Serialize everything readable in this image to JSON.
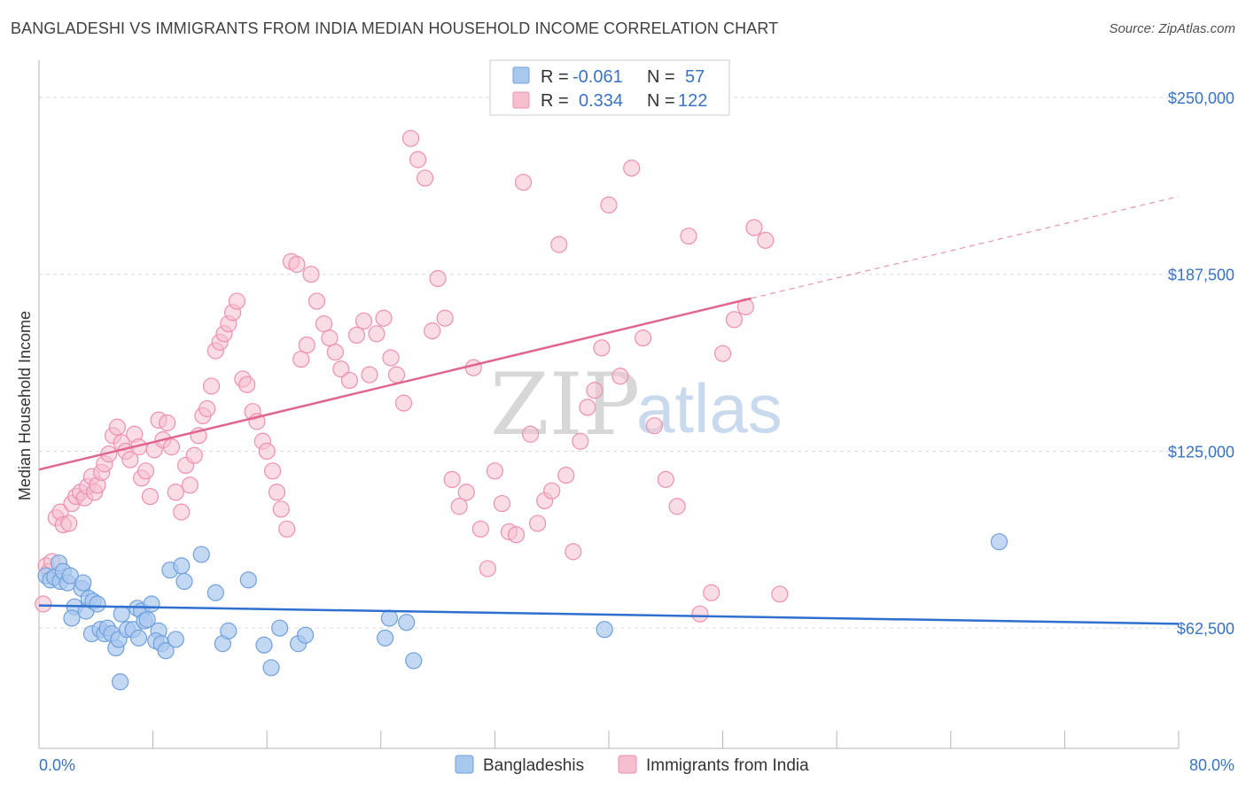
{
  "header": {
    "title": "BANGLADESHI VS IMMIGRANTS FROM INDIA MEDIAN HOUSEHOLD INCOME CORRELATION CHART",
    "source": "Source: ZipAtlas.com"
  },
  "watermark": {
    "zip": "ZIP",
    "atlas": "atlas"
  },
  "legend": {
    "r_label": "R =",
    "n_label": "N =",
    "rows": [
      {
        "r": "-0.061",
        "n": "57",
        "color": "#6fa0dd"
      },
      {
        "r": "0.334",
        "n": "122",
        "color": "#ef8fb0"
      }
    ]
  },
  "colors": {
    "blue_fill": "#a9c8ee",
    "blue_stroke": "#6fa0dd",
    "blue_line": "#2f6fd0",
    "pink_fill": "#f6bfd0",
    "pink_stroke": "#ee8fb0",
    "pink_line": "#e0668f",
    "tick_label": "#3a72c4",
    "grid": "#d9d9d9"
  },
  "chart_data": {
    "type": "scatter",
    "title": "BANGLADESHI VS IMMIGRANTS FROM INDIA MEDIAN HOUSEHOLD INCOME CORRELATION CHART",
    "xlabel": "",
    "ylabel": "Median Household Income",
    "xlim": [
      0,
      80
    ],
    "ylim": [
      20000,
      260000
    ],
    "x_tick_labels": [
      "0.0%",
      "80.0%"
    ],
    "y_ticks": [
      62500,
      125000,
      187500,
      250000
    ],
    "y_tick_labels": [
      "$62,500",
      "$125,000",
      "$187,500",
      "$250,000"
    ],
    "grid": true,
    "legend_position": "top-center",
    "series": [
      {
        "name": "Bangladeshis",
        "trend": {
          "x": [
            0,
            80
          ],
          "y": [
            70500,
            64000
          ],
          "solid_until_x": 80
        },
        "points": [
          [
            0.5,
            81000
          ],
          [
            0.8,
            79500
          ],
          [
            1.1,
            80500
          ],
          [
            1.4,
            85500
          ],
          [
            1.5,
            79000
          ],
          [
            1.7,
            82500
          ],
          [
            2.0,
            78500
          ],
          [
            2.2,
            81000
          ],
          [
            2.5,
            70000
          ],
          [
            2.3,
            66000
          ],
          [
            3.0,
            76500
          ],
          [
            3.1,
            78500
          ],
          [
            3.3,
            68500
          ],
          [
            3.5,
            73000
          ],
          [
            3.8,
            72000
          ],
          [
            3.7,
            60500
          ],
          [
            4.1,
            71000
          ],
          [
            4.3,
            62000
          ],
          [
            4.6,
            60500
          ],
          [
            4.8,
            62500
          ],
          [
            5.1,
            60500
          ],
          [
            5.4,
            55500
          ],
          [
            5.6,
            58500
          ],
          [
            5.7,
            43500
          ],
          [
            5.8,
            67500
          ],
          [
            6.2,
            62000
          ],
          [
            6.6,
            62000
          ],
          [
            6.9,
            69500
          ],
          [
            7.2,
            68500
          ],
          [
            7.4,
            65000
          ],
          [
            7.6,
            65500
          ],
          [
            7.0,
            59000
          ],
          [
            7.9,
            71000
          ],
          [
            8.4,
            61500
          ],
          [
            8.2,
            58000
          ],
          [
            8.6,
            57000
          ],
          [
            8.9,
            54500
          ],
          [
            9.2,
            83000
          ],
          [
            9.6,
            58500
          ],
          [
            10.2,
            79000
          ],
          [
            10.0,
            84500
          ],
          [
            11.4,
            88500
          ],
          [
            12.4,
            75000
          ],
          [
            12.9,
            57000
          ],
          [
            13.3,
            61500
          ],
          [
            14.7,
            79500
          ],
          [
            15.8,
            56500
          ],
          [
            16.9,
            62500
          ],
          [
            16.3,
            48500
          ],
          [
            18.2,
            57000
          ],
          [
            18.7,
            60000
          ],
          [
            24.3,
            59000
          ],
          [
            24.6,
            66000
          ],
          [
            25.8,
            64500
          ],
          [
            26.3,
            51000
          ],
          [
            39.7,
            62000
          ],
          [
            67.4,
            93000
          ]
        ]
      },
      {
        "name": "Immigrants from India",
        "trend": {
          "x": [
            0,
            50
          ],
          "y": [
            118500,
            179000
          ],
          "solid_until_x": 50,
          "dashed_to": {
            "x": 80,
            "y": 215000
          }
        },
        "points": [
          [
            0.3,
            71000
          ],
          [
            0.5,
            84500
          ],
          [
            0.7,
            82500
          ],
          [
            0.9,
            86000
          ],
          [
            1.2,
            101500
          ],
          [
            1.5,
            103500
          ],
          [
            1.7,
            99000
          ],
          [
            2.1,
            99500
          ],
          [
            2.3,
            106500
          ],
          [
            2.6,
            109000
          ],
          [
            2.9,
            110500
          ],
          [
            3.2,
            108500
          ],
          [
            3.4,
            112500
          ],
          [
            3.7,
            116000
          ],
          [
            3.9,
            110500
          ],
          [
            4.1,
            113000
          ],
          [
            4.4,
            117500
          ],
          [
            4.6,
            120500
          ],
          [
            4.9,
            124000
          ],
          [
            5.2,
            130500
          ],
          [
            5.5,
            133500
          ],
          [
            5.8,
            128000
          ],
          [
            6.1,
            125000
          ],
          [
            6.4,
            122000
          ],
          [
            6.7,
            131000
          ],
          [
            7.0,
            126500
          ],
          [
            7.2,
            115500
          ],
          [
            7.5,
            118000
          ],
          [
            7.8,
            109000
          ],
          [
            8.1,
            125500
          ],
          [
            8.4,
            136000
          ],
          [
            8.7,
            129000
          ],
          [
            9.0,
            135000
          ],
          [
            9.3,
            126500
          ],
          [
            9.6,
            110500
          ],
          [
            10.0,
            103500
          ],
          [
            10.3,
            120000
          ],
          [
            10.6,
            113000
          ],
          [
            10.9,
            123500
          ],
          [
            11.2,
            130500
          ],
          [
            11.5,
            137500
          ],
          [
            11.8,
            140000
          ],
          [
            12.1,
            148000
          ],
          [
            12.4,
            160500
          ],
          [
            12.7,
            163500
          ],
          [
            13.0,
            166500
          ],
          [
            13.3,
            170000
          ],
          [
            13.6,
            174000
          ],
          [
            13.9,
            178000
          ],
          [
            14.3,
            150500
          ],
          [
            14.6,
            148500
          ],
          [
            15.0,
            139000
          ],
          [
            15.3,
            135500
          ],
          [
            15.7,
            128500
          ],
          [
            16.0,
            125000
          ],
          [
            16.4,
            118000
          ],
          [
            16.7,
            110500
          ],
          [
            17.0,
            104500
          ],
          [
            17.4,
            97500
          ],
          [
            17.7,
            192000
          ],
          [
            18.1,
            191000
          ],
          [
            18.4,
            157500
          ],
          [
            18.8,
            162500
          ],
          [
            19.1,
            187500
          ],
          [
            19.5,
            178000
          ],
          [
            20.0,
            170000
          ],
          [
            20.4,
            165000
          ],
          [
            20.8,
            160000
          ],
          [
            21.2,
            154000
          ],
          [
            21.8,
            150000
          ],
          [
            22.3,
            166000
          ],
          [
            22.8,
            171000
          ],
          [
            23.2,
            152000
          ],
          [
            23.7,
            166500
          ],
          [
            24.2,
            172000
          ],
          [
            24.7,
            158000
          ],
          [
            25.1,
            152000
          ],
          [
            25.6,
            142000
          ],
          [
            26.1,
            235500
          ],
          [
            26.6,
            228000
          ],
          [
            27.1,
            221500
          ],
          [
            27.6,
            167500
          ],
          [
            28.0,
            186000
          ],
          [
            28.5,
            172000
          ],
          [
            29.0,
            115000
          ],
          [
            29.5,
            105500
          ],
          [
            30.0,
            110500
          ],
          [
            30.5,
            154500
          ],
          [
            31.0,
            97500
          ],
          [
            31.5,
            83500
          ],
          [
            32.0,
            118000
          ],
          [
            32.5,
            106500
          ],
          [
            33.0,
            96500
          ],
          [
            33.5,
            95500
          ],
          [
            34.0,
            220000
          ],
          [
            34.5,
            131000
          ],
          [
            35.0,
            99500
          ],
          [
            35.5,
            107500
          ],
          [
            36.0,
            111000
          ],
          [
            36.5,
            198000
          ],
          [
            37.0,
            116500
          ],
          [
            37.5,
            89500
          ],
          [
            38.0,
            128500
          ],
          [
            38.5,
            140500
          ],
          [
            39.0,
            146500
          ],
          [
            39.5,
            161500
          ],
          [
            40.0,
            212000
          ],
          [
            40.8,
            151500
          ],
          [
            41.6,
            225000
          ],
          [
            42.4,
            165000
          ],
          [
            43.2,
            134000
          ],
          [
            44.0,
            115000
          ],
          [
            44.8,
            105500
          ],
          [
            45.6,
            201000
          ],
          [
            46.4,
            67500
          ],
          [
            47.2,
            75000
          ],
          [
            48.0,
            159500
          ],
          [
            48.8,
            171500
          ],
          [
            49.6,
            176000
          ],
          [
            50.2,
            204000
          ],
          [
            51.0,
            199500
          ],
          [
            52.0,
            74500
          ]
        ]
      }
    ]
  }
}
